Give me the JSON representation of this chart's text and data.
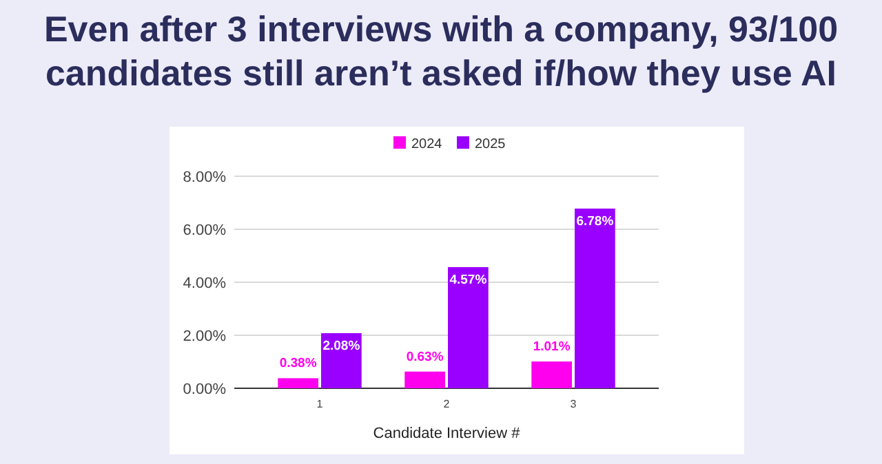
{
  "chart_data": {
    "type": "bar",
    "title": "Even after 3 interviews with a company, 93/100 candidates still aren’t asked if/how they use AI",
    "xlabel": "Candidate Interview #",
    "categories": [
      "1",
      "2",
      "3"
    ],
    "series": [
      {
        "name": "2024",
        "color": "#ff00ee",
        "values": [
          0.38,
          0.63,
          1.01
        ],
        "value_labels": [
          "0.38%",
          "0.63%",
          "1.01%"
        ]
      },
      {
        "name": "2025",
        "color": "#9900ff",
        "values": [
          2.08,
          4.57,
          6.78
        ],
        "value_labels": [
          "2.08%",
          "4.57%",
          "6.78%"
        ]
      }
    ],
    "ylim": [
      0,
      8
    ],
    "yticks": [
      {
        "value": 0,
        "label": "0.00%"
      },
      {
        "value": 2,
        "label": "2.00%"
      },
      {
        "value": 4,
        "label": "4.00%"
      },
      {
        "value": 6,
        "label": "6.00%"
      },
      {
        "value": 8,
        "label": "8.00%"
      }
    ],
    "grid": "y",
    "legend": "top"
  }
}
